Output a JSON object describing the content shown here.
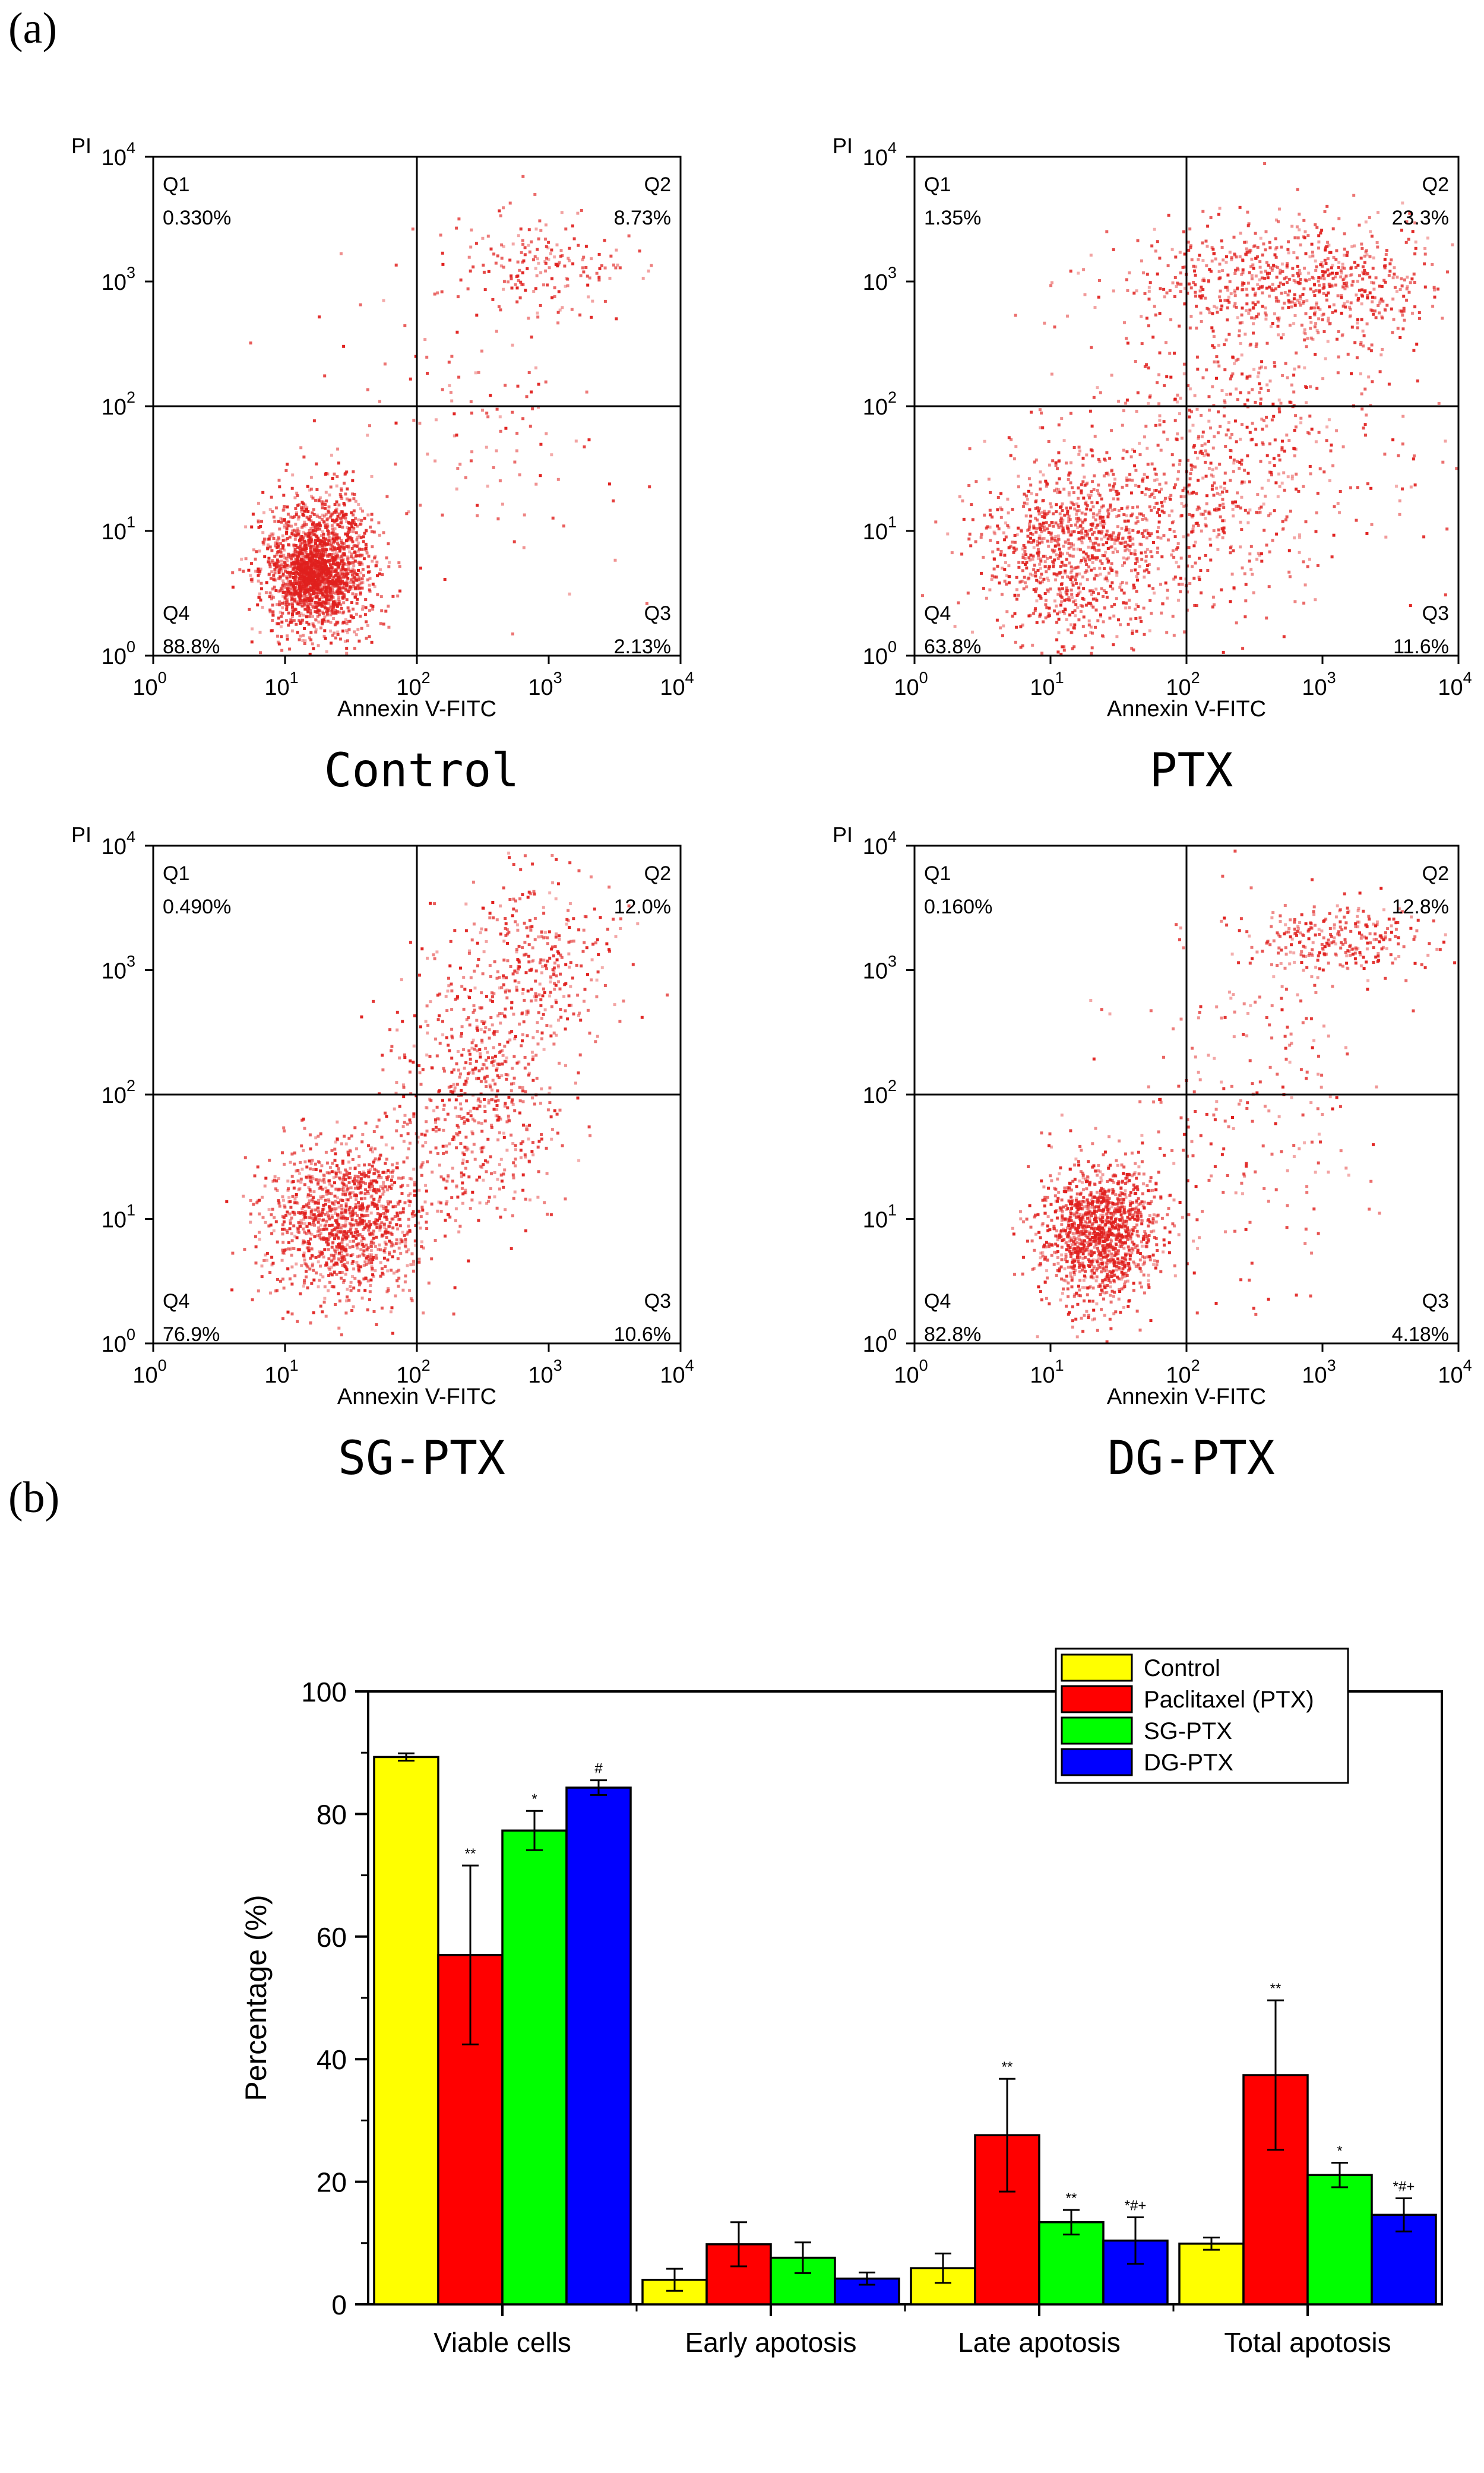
{
  "panel_labels": {
    "a": "(a)",
    "b": "(b)"
  },
  "chart_data": [
    {
      "type": "scatter",
      "title": "Control",
      "xlabel": "Annexin V-FITC",
      "ylabel": "PI",
      "scale": "log",
      "xlim": [
        1,
        10000
      ],
      "ylim": [
        1,
        10000
      ],
      "gate": [
        100,
        100
      ],
      "quadrants": {
        "Q1": "0.330%",
        "Q2": "8.73%",
        "Q3": "2.13%",
        "Q4": "88.8%"
      },
      "quadrant_names": [
        "Q1",
        "Q2",
        "Q3",
        "Q4"
      ],
      "ticks": [
        "10",
        "10",
        "10",
        "10",
        "10"
      ],
      "tick_exponents": [
        "0",
        "1",
        "2",
        "3",
        "4"
      ],
      "population_color": "#e0201e"
    },
    {
      "type": "scatter",
      "title": "PTX",
      "xlabel": "Annexin V-FITC",
      "ylabel": "PI",
      "scale": "log",
      "xlim": [
        1,
        10000
      ],
      "ylim": [
        1,
        10000
      ],
      "gate": [
        100,
        100
      ],
      "quadrants": {
        "Q1": "1.35%",
        "Q2": "23.3%",
        "Q3": "11.6%",
        "Q4": "63.8%"
      },
      "quadrant_names": [
        "Q1",
        "Q2",
        "Q3",
        "Q4"
      ],
      "ticks": [
        "10",
        "10",
        "10",
        "10",
        "10"
      ],
      "tick_exponents": [
        "0",
        "1",
        "2",
        "3",
        "4"
      ],
      "population_color": "#e0201e"
    },
    {
      "type": "scatter",
      "title": "SG-PTX",
      "xlabel": "Annexin V-FITC",
      "ylabel": "PI",
      "scale": "log",
      "xlim": [
        1,
        10000
      ],
      "ylim": [
        1,
        10000
      ],
      "gate": [
        100,
        100
      ],
      "quadrants": {
        "Q1": "0.490%",
        "Q2": "12.0%",
        "Q3": "10.6%",
        "Q4": "76.9%"
      },
      "quadrant_names": [
        "Q1",
        "Q2",
        "Q3",
        "Q4"
      ],
      "ticks": [
        "10",
        "10",
        "10",
        "10",
        "10"
      ],
      "tick_exponents": [
        "0",
        "1",
        "2",
        "3",
        "4"
      ],
      "population_color": "#e0201e"
    },
    {
      "type": "scatter",
      "title": "DG-PTX",
      "xlabel": "Annexin V-FITC",
      "ylabel": "PI",
      "scale": "log",
      "xlim": [
        1,
        10000
      ],
      "ylim": [
        1,
        10000
      ],
      "gate": [
        100,
        100
      ],
      "quadrants": {
        "Q1": "0.160%",
        "Q2": "12.8%",
        "Q3": "4.18%",
        "Q4": "82.8%"
      },
      "quadrant_names": [
        "Q1",
        "Q2",
        "Q3",
        "Q4"
      ],
      "ticks": [
        "10",
        "10",
        "10",
        "10",
        "10"
      ],
      "tick_exponents": [
        "0",
        "1",
        "2",
        "3",
        "4"
      ],
      "population_color": "#e0201e"
    },
    {
      "type": "bar",
      "categories": [
        "Viable cells",
        "Early apotosis",
        "Late apotosis",
        "Total apotosis"
      ],
      "ylabel": "Percentage (%)",
      "ylim": [
        0,
        100
      ],
      "yticks": [
        0,
        20,
        40,
        60,
        80,
        100
      ],
      "legend": "top-right",
      "series": [
        {
          "name": "Control",
          "color": "#ffff00",
          "values": [
            89.3,
            4.0,
            5.9,
            9.9
          ],
          "errors": [
            0.6,
            1.8,
            2.4,
            1.0
          ],
          "marks": [
            "",
            "",
            "",
            ""
          ]
        },
        {
          "name": "Paclitaxel (PTX)",
          "color": "#ff0000",
          "values": [
            57.0,
            9.8,
            27.6,
            37.4
          ],
          "errors": [
            14.6,
            3.6,
            9.2,
            12.2
          ],
          "marks": [
            "**",
            "",
            "**",
            "**"
          ]
        },
        {
          "name": "SG-PTX",
          "color": "#00ff00",
          "values": [
            77.3,
            7.6,
            13.4,
            21.1
          ],
          "errors": [
            3.2,
            2.5,
            2.0,
            2.0
          ],
          "marks": [
            "*",
            "",
            "**",
            "*"
          ]
        },
        {
          "name": "DG-PTX",
          "color": "#0000ff",
          "values": [
            84.3,
            4.2,
            10.4,
            14.6
          ],
          "errors": [
            1.2,
            1.0,
            3.8,
            2.7
          ],
          "marks": [
            "#",
            "",
            "*#+",
            "*#+"
          ]
        }
      ]
    }
  ]
}
